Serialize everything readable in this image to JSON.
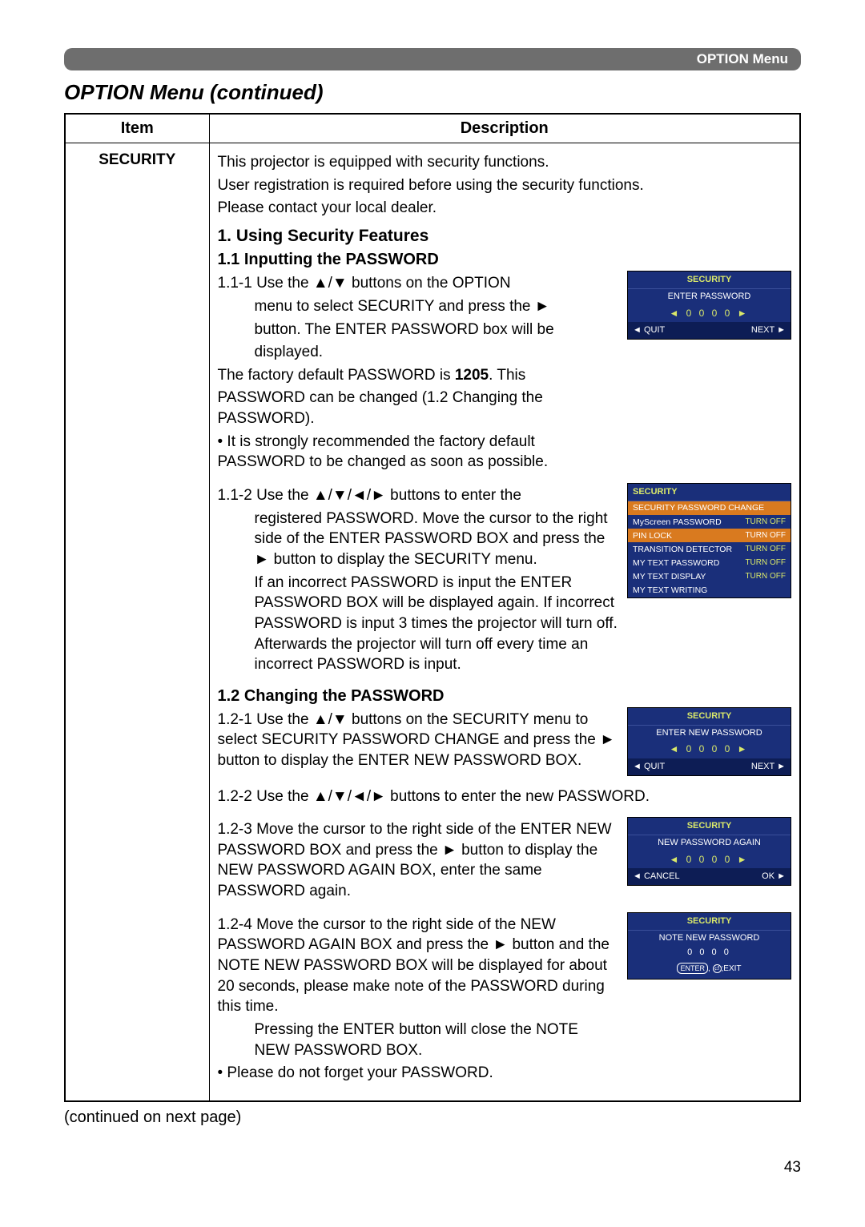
{
  "header": {
    "tab": "OPTION Menu"
  },
  "title": "OPTION Menu (continued)",
  "table": {
    "col_item": "Item",
    "col_desc": "Description",
    "item": "SECURITY",
    "intro1": "This projector is equipped with security functions.",
    "intro2": "User registration is required before using the security functions.",
    "intro3": "Please contact your local dealer.",
    "h1": "1. Using Security Features",
    "h11": "1.1 Inputting the PASSWORD",
    "s111a": "1.1-1 Use the ▲/▼ buttons on the OPTION",
    "s111b": "menu to select SECURITY and press the ►",
    "s111c": "button. The ENTER PASSWORD box will be",
    "s111d": "displayed.",
    "s111e": "The factory default PASSWORD is ",
    "s111e_bold": "1205",
    "s111e2": ". This",
    "s111f": "PASSWORD can be changed (1.2 Changing the PASSWORD).",
    "s111g": "• It is strongly recommended the factory default PASSWORD to be changed as soon as possible.",
    "s112a": "1.1-2 Use the ▲/▼/◄/► buttons to enter the",
    "s112b": "registered PASSWORD. Move the cursor to the right side of the ENTER PASSWORD BOX and press the ► button to display the SECURITY menu.",
    "s112c": "If an incorrect PASSWORD is input the ENTER PASSWORD BOX will be displayed again. If incorrect PASSWORD is input 3 times the projector will turn off. Afterwards the projector will turn off every time an incorrect PASSWORD is input.",
    "h12": "1.2 Changing the PASSWORD",
    "s121": "1.2-1 Use the ▲/▼ buttons on the SECURITY menu to select SECURITY PASSWORD CHANGE and press the ► button to display the ENTER NEW PASSWORD BOX.",
    "s122": "1.2-2 Use the ▲/▼/◄/► buttons to enter the new PASSWORD.",
    "s123": "1.2-3 Move the cursor to the right side of the ENTER NEW PASSWORD BOX and press the ► button to display the NEW PASSWORD AGAIN BOX, enter the same PASSWORD again.",
    "s124": "1.2-4 Move the cursor to the right side of the NEW PASSWORD AGAIN BOX and press the ► button and the NOTE NEW PASSWORD BOX will be displayed for about 20 seconds, please make note of the PASSWORD during this time.",
    "s124b": "Pressing the ENTER button will close the NOTE NEW PASSWORD BOX.",
    "s124c": "• Please do not forget your PASSWORD."
  },
  "osd1": {
    "title": "SECURITY",
    "sub": "ENTER PASSWORD",
    "digits": "◄ 0 0 0 0 ►",
    "left": "◄ QUIT",
    "right": "NEXT ►"
  },
  "osd2": {
    "title": "SECURITY",
    "rows": [
      {
        "l": "SECURITY PASSWORD CHANGE",
        "r": "",
        "sel": true
      },
      {
        "l": "MyScreen PASSWORD",
        "r": "TURN OFF"
      },
      {
        "l": "PIN LOCK",
        "r": "TURN OFF",
        "sel": true
      },
      {
        "l": "TRANSITION DETECTOR",
        "r": "TURN OFF"
      },
      {
        "l": "MY TEXT PASSWORD",
        "r": "TURN OFF"
      },
      {
        "l": "MY TEXT DISPLAY",
        "r": "TURN OFF"
      },
      {
        "l": "MY TEXT WRITING",
        "r": ""
      }
    ]
  },
  "osd3": {
    "title": "SECURITY",
    "sub": "ENTER NEW PASSWORD",
    "digits": "◄ 0 0 0 0 ►",
    "left": "◄ QUIT",
    "right": "NEXT ►"
  },
  "osd4": {
    "title": "SECURITY",
    "sub": "NEW PASSWORD AGAIN",
    "digits": "◄ 0 0 0 0 ►",
    "left": "◄ CANCEL",
    "right": "OK ►"
  },
  "osd5": {
    "title": "SECURITY",
    "sub": "NOTE NEW PASSWORD",
    "digits": "0 0 0 0",
    "btn1": "ENTER",
    "btn2": ",",
    "btn3": ";EXIT"
  },
  "continued": "(continued on next page)",
  "page": "43"
}
